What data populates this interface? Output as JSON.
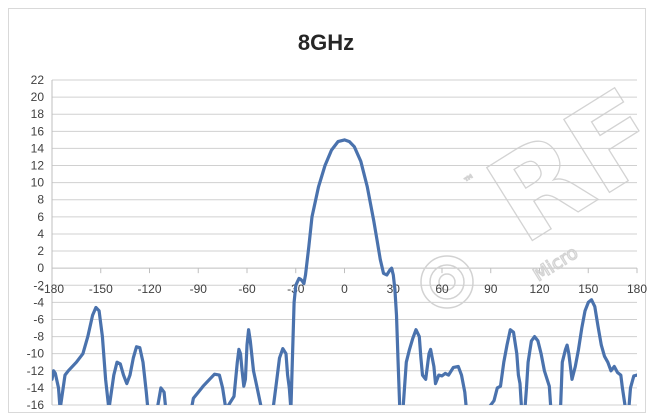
{
  "chart_data": {
    "type": "line",
    "title": "8GHz",
    "xlabel": "",
    "ylabel": "",
    "xlim": [
      -180,
      180
    ],
    "ylim": [
      -16,
      22
    ],
    "x_ticks": [
      -180,
      -150,
      -120,
      -90,
      -60,
      -30,
      0,
      30,
      60,
      90,
      120,
      150,
      180
    ],
    "y_ticks": [
      22,
      20,
      18,
      16,
      14,
      12,
      10,
      8,
      6,
      4,
      2,
      0,
      -2,
      -4,
      -6,
      -8,
      -10,
      -12,
      -14,
      -16
    ],
    "grid": true,
    "legend": "none",
    "colors": {
      "series": "#4a72ad",
      "grid": "#d0d0d0",
      "axis": "#bfbfbf"
    },
    "series": [
      {
        "points": [
          [
            -180,
            -13
          ],
          [
            -179,
            -12
          ],
          [
            -178,
            -12.3
          ],
          [
            -176,
            -14
          ],
          [
            -175,
            -16.5
          ],
          [
            -172,
            -12.5
          ],
          [
            -170,
            -12
          ],
          [
            -165,
            -11
          ],
          [
            -161,
            -10
          ],
          [
            -158,
            -8
          ],
          [
            -155,
            -5.5
          ],
          [
            -153,
            -4.6
          ],
          [
            -151,
            -5
          ],
          [
            -149,
            -8
          ],
          [
            -147,
            -13
          ],
          [
            -145,
            -16.5
          ],
          [
            -142,
            -12.5
          ],
          [
            -140,
            -11
          ],
          [
            -138,
            -11.2
          ],
          [
            -136,
            -12.5
          ],
          [
            -134,
            -13.5
          ],
          [
            -132,
            -12.5
          ],
          [
            -130,
            -10.5
          ],
          [
            -128,
            -9.2
          ],
          [
            -126,
            -9.3
          ],
          [
            -124,
            -11
          ],
          [
            -122,
            -14.5
          ],
          [
            -121,
            -16.5
          ],
          [
            -115,
            -16.2
          ],
          [
            -113,
            -14
          ],
          [
            -111,
            -14.5
          ],
          [
            -110,
            -16.5
          ],
          [
            -94,
            -16.2
          ],
          [
            -93,
            -15.2
          ],
          [
            -90,
            -14.5
          ],
          [
            -87,
            -13.8
          ],
          [
            -83,
            -13
          ],
          [
            -80,
            -12.4
          ],
          [
            -77,
            -12.5
          ],
          [
            -75,
            -14
          ],
          [
            -73,
            -16.5
          ],
          [
            -68,
            -15
          ],
          [
            -66,
            -11
          ],
          [
            -65,
            -9.5
          ],
          [
            -64,
            -10
          ],
          [
            -63,
            -12
          ],
          [
            -62,
            -13.8
          ],
          [
            -61,
            -13
          ],
          [
            -60,
            -9
          ],
          [
            -59,
            -7.2
          ],
          [
            -58,
            -8.5
          ],
          [
            -56,
            -12
          ],
          [
            -54,
            -13.8
          ],
          [
            -51,
            -16.5
          ],
          [
            -44,
            -16.5
          ],
          [
            -42,
            -13.5
          ],
          [
            -40,
            -10.5
          ],
          [
            -38,
            -9.4
          ],
          [
            -36,
            -10
          ],
          [
            -35,
            -12.5
          ],
          [
            -34,
            -14
          ],
          [
            -33,
            -16.5
          ],
          [
            -31,
            -4
          ],
          [
            -30,
            -2
          ],
          [
            -29,
            -1.6
          ],
          [
            -28,
            -1.2
          ],
          [
            -27,
            -1.3
          ],
          [
            -26,
            -1.5
          ],
          [
            -25,
            -1.8
          ],
          [
            -24,
            -0.8
          ],
          [
            -22,
            2.5
          ],
          [
            -20,
            6
          ],
          [
            -16,
            9.5
          ],
          [
            -12,
            12
          ],
          [
            -8,
            13.8
          ],
          [
            -4,
            14.8
          ],
          [
            0,
            15
          ],
          [
            3,
            14.8
          ],
          [
            6,
            14.2
          ],
          [
            10,
            12.5
          ],
          [
            14,
            9.5
          ],
          [
            18,
            5.5
          ],
          [
            20,
            3.3
          ],
          [
            22,
            1
          ],
          [
            24,
            -0.6
          ],
          [
            26,
            -0.8
          ],
          [
            28,
            -0.2
          ],
          [
            29,
            0
          ],
          [
            30,
            -0.8
          ],
          [
            31,
            -2.5
          ],
          [
            32,
            -5.5
          ],
          [
            33,
            -11
          ],
          [
            34,
            -16.5
          ],
          [
            36,
            -16.5
          ],
          [
            38,
            -11
          ],
          [
            40,
            -9.5
          ],
          [
            42,
            -8.2
          ],
          [
            44,
            -7.2
          ],
          [
            46,
            -8
          ],
          [
            47,
            -10.5
          ],
          [
            48,
            -12.5
          ],
          [
            50,
            -13
          ],
          [
            52,
            -10
          ],
          [
            53,
            -9.5
          ],
          [
            55,
            -11.5
          ],
          [
            56,
            -13.5
          ],
          [
            58,
            -12.5
          ],
          [
            60,
            -12.6
          ],
          [
            62,
            -12.3
          ],
          [
            64,
            -12.5
          ],
          [
            67,
            -11.6
          ],
          [
            70,
            -11.5
          ],
          [
            72,
            -12.5
          ],
          [
            74,
            -14.5
          ],
          [
            75,
            -16.5
          ],
          [
            88,
            -16.5
          ],
          [
            92,
            -15.5
          ],
          [
            94,
            -14
          ],
          [
            96,
            -13.8
          ],
          [
            98,
            -11
          ],
          [
            100,
            -9
          ],
          [
            102,
            -7.2
          ],
          [
            104,
            -7.5
          ],
          [
            106,
            -10
          ],
          [
            107,
            -12.5
          ],
          [
            108,
            -13.5
          ],
          [
            109,
            -16.5
          ],
          [
            111,
            -16.5
          ],
          [
            112,
            -14
          ],
          [
            113,
            -11
          ],
          [
            115,
            -8.5
          ],
          [
            117,
            -8
          ],
          [
            119,
            -8.5
          ],
          [
            121,
            -10
          ],
          [
            123,
            -12
          ],
          [
            126,
            -13.8
          ],
          [
            127,
            -16.5
          ],
          [
            133,
            -16.2
          ],
          [
            134,
            -11
          ],
          [
            136,
            -9.5
          ],
          [
            137,
            -9
          ],
          [
            138,
            -10
          ],
          [
            140,
            -13
          ],
          [
            142,
            -11.5
          ],
          [
            144,
            -9.5
          ],
          [
            146,
            -7
          ],
          [
            148,
            -5
          ],
          [
            150,
            -4
          ],
          [
            152,
            -3.7
          ],
          [
            154,
            -4.5
          ],
          [
            156,
            -6.8
          ],
          [
            158,
            -9
          ],
          [
            160,
            -10.3
          ],
          [
            162,
            -11
          ],
          [
            164,
            -12
          ],
          [
            166,
            -11.5
          ],
          [
            168,
            -12.2
          ],
          [
            170,
            -12.5
          ],
          [
            171,
            -14
          ],
          [
            173,
            -16.5
          ],
          [
            175,
            -16.3
          ],
          [
            176,
            -14
          ],
          [
            178,
            -12.6
          ],
          [
            180,
            -12.5
          ]
        ]
      }
    ]
  },
  "watermark": {
    "main_text": "RF",
    "sub_text": "Micro",
    "tm": "™"
  }
}
